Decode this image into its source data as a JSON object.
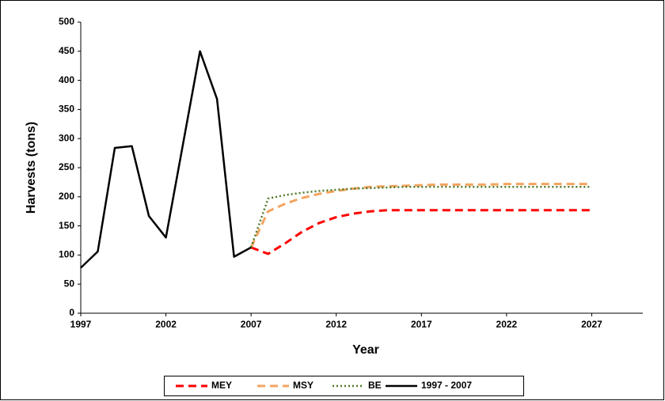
{
  "chart_data": {
    "type": "line",
    "x_label": "Year",
    "y_label": "Harvests (tons)",
    "x": [
      1997,
      1998,
      1999,
      2000,
      2001,
      2002,
      2003,
      2004,
      2005,
      2006,
      2007,
      2008,
      2009,
      2010,
      2011,
      2012,
      2013,
      2014,
      2015,
      2016,
      2017,
      2018,
      2019,
      2020,
      2021,
      2022,
      2023,
      2024,
      2025,
      2026,
      2027
    ],
    "series": [
      {
        "name": "MEY",
        "color": "#ff0000",
        "dash": "dashed",
        "values": [
          null,
          null,
          null,
          null,
          null,
          null,
          null,
          null,
          null,
          null,
          113,
          102,
          120,
          140,
          155,
          165,
          171,
          175,
          177,
          177,
          177,
          177,
          177,
          177,
          177,
          177,
          177,
          177,
          177,
          177,
          177
        ]
      },
      {
        "name": "MSY",
        "color": "#f4a460",
        "dash": "dashed",
        "values": [
          null,
          null,
          null,
          null,
          null,
          null,
          null,
          null,
          null,
          null,
          113,
          175,
          188,
          198,
          205,
          210,
          214,
          217,
          218,
          219,
          220,
          221,
          221,
          221,
          221,
          222,
          222,
          222,
          222,
          222,
          222
        ]
      },
      {
        "name": "BE",
        "color": "#4f7a28",
        "dash": "dotted",
        "values": [
          null,
          null,
          null,
          null,
          null,
          null,
          null,
          null,
          null,
          null,
          113,
          197,
          203,
          207,
          210,
          212,
          214,
          215,
          216,
          217,
          217,
          217,
          217,
          217,
          217,
          217,
          217,
          217,
          217,
          217,
          217
        ]
      },
      {
        "name": "1997 - 2007",
        "color": "#000000",
        "dash": "solid",
        "values": [
          78,
          106,
          284,
          287,
          167,
          130,
          290,
          450,
          368,
          97,
          113,
          null,
          null,
          null,
          null,
          null,
          null,
          null,
          null,
          null,
          null,
          null,
          null,
          null,
          null,
          null,
          null,
          null,
          null,
          null,
          null
        ]
      }
    ],
    "xlim": [
      1997,
      2030
    ],
    "xticks": [
      1997,
      2002,
      2007,
      2012,
      2017,
      2022,
      2027
    ],
    "ylim": [
      0,
      500
    ],
    "yticks": [
      0,
      50,
      100,
      150,
      200,
      250,
      300,
      350,
      400,
      450,
      500
    ],
    "grid": false,
    "legend": "bottom"
  }
}
